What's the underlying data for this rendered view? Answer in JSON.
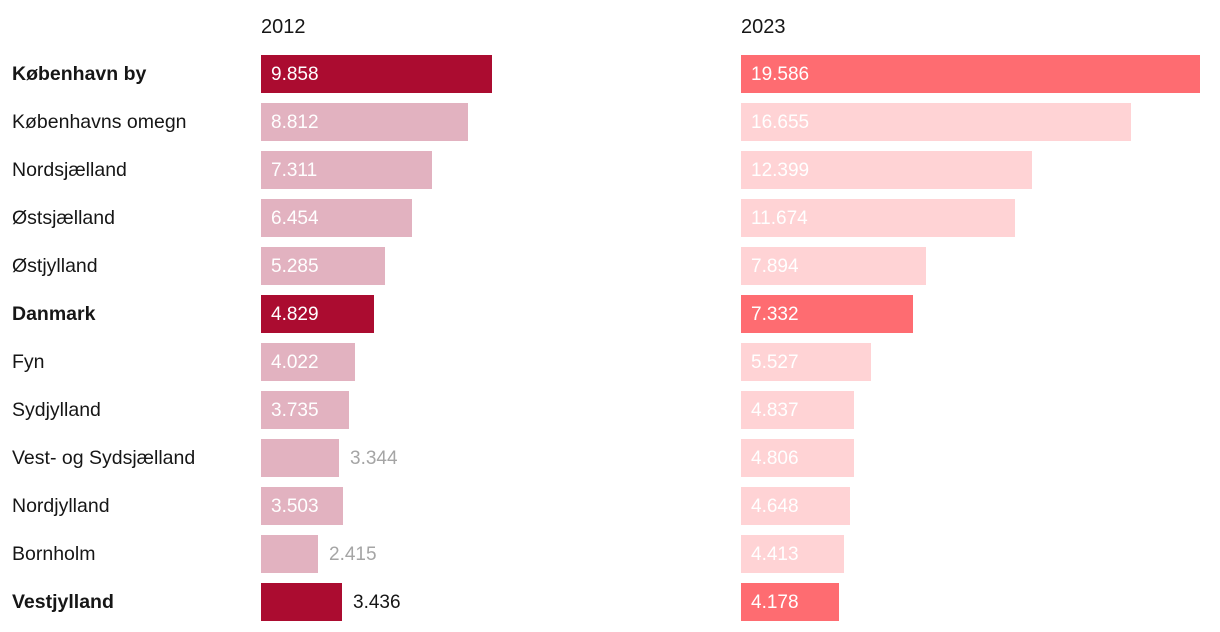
{
  "chart_data": {
    "type": "bar",
    "orientation": "horizontal",
    "column_headers": [
      "2012",
      "2023"
    ],
    "categories": [
      "København by",
      "Københavns omegn",
      "Nordsjælland",
      "Østsjælland",
      "Østjylland",
      "Danmark",
      "Fyn",
      "Sydjylland",
      "Vest- og Sydsjælland",
      "Nordjylland",
      "Bornholm",
      "Vestjylland"
    ],
    "series": [
      {
        "name": "2012",
        "values": [
          9858,
          8812,
          7311,
          6454,
          5285,
          4829,
          4022,
          3735,
          3344,
          3503,
          2415,
          3436
        ]
      },
      {
        "name": "2023",
        "values": [
          19586,
          16655,
          12399,
          11674,
          7894,
          7332,
          5527,
          4837,
          4806,
          4648,
          4413,
          4178
        ]
      }
    ],
    "highlighted_categories": [
      "København by",
      "Danmark",
      "Vestjylland"
    ],
    "xlim": [
      0,
      19586
    ],
    "grid": "off",
    "legend_position": "column-headers",
    "value_format": "thousands-dot"
  },
  "headers": {
    "col2012": "2012",
    "col2023": "2023"
  },
  "colors": {
    "bar_2012_highlight": "#ab0c30",
    "bar_2012_normal": "#e2b2c0",
    "bar_2023_highlight": "#fe6c71",
    "bar_2023_normal": "#ffd3d5",
    "value_inside": "#ffffff",
    "value_outside_muted": "#a5a5a5",
    "text": "#161616",
    "background": "#ffffff"
  },
  "rows": [
    {
      "label": "København by",
      "highlight": true,
      "cells": [
        {
          "value": 9858,
          "text": "9.858",
          "label_position": "inside"
        },
        {
          "value": 19586,
          "text": "19.586",
          "label_position": "inside"
        }
      ]
    },
    {
      "label": "Københavns omegn",
      "highlight": false,
      "cells": [
        {
          "value": 8812,
          "text": "8.812",
          "label_position": "inside"
        },
        {
          "value": 16655,
          "text": "16.655",
          "label_position": "inside"
        }
      ]
    },
    {
      "label": "Nordsjælland",
      "highlight": false,
      "cells": [
        {
          "value": 7311,
          "text": "7.311",
          "label_position": "inside"
        },
        {
          "value": 12399,
          "text": "12.399",
          "label_position": "inside"
        }
      ]
    },
    {
      "label": "Østsjælland",
      "highlight": false,
      "cells": [
        {
          "value": 6454,
          "text": "6.454",
          "label_position": "inside"
        },
        {
          "value": 11674,
          "text": "11.674",
          "label_position": "inside"
        }
      ]
    },
    {
      "label": "Østjylland",
      "highlight": false,
      "cells": [
        {
          "value": 5285,
          "text": "5.285",
          "label_position": "inside"
        },
        {
          "value": 7894,
          "text": "7.894",
          "label_position": "inside"
        }
      ]
    },
    {
      "label": "Danmark",
      "highlight": true,
      "cells": [
        {
          "value": 4829,
          "text": "4.829",
          "label_position": "inside"
        },
        {
          "value": 7332,
          "text": "7.332",
          "label_position": "inside"
        }
      ]
    },
    {
      "label": "Fyn",
      "highlight": false,
      "cells": [
        {
          "value": 4022,
          "text": "4.022",
          "label_position": "inside"
        },
        {
          "value": 5527,
          "text": "5.527",
          "label_position": "inside"
        }
      ]
    },
    {
      "label": "Sydjylland",
      "highlight": false,
      "cells": [
        {
          "value": 3735,
          "text": "3.735",
          "label_position": "inside"
        },
        {
          "value": 4837,
          "text": "4.837",
          "label_position": "inside"
        }
      ]
    },
    {
      "label": "Vest- og Sydsjælland",
      "highlight": false,
      "cells": [
        {
          "value": 3344,
          "text": "3.344",
          "label_position": "outside-muted"
        },
        {
          "value": 4806,
          "text": "4.806",
          "label_position": "inside"
        }
      ]
    },
    {
      "label": "Nordjylland",
      "highlight": false,
      "cells": [
        {
          "value": 3503,
          "text": "3.503",
          "label_position": "inside"
        },
        {
          "value": 4648,
          "text": "4.648",
          "label_position": "inside"
        }
      ]
    },
    {
      "label": "Bornholm",
      "highlight": false,
      "cells": [
        {
          "value": 2415,
          "text": "2.415",
          "label_position": "outside-muted"
        },
        {
          "value": 4413,
          "text": "4.413",
          "label_position": "inside"
        }
      ]
    },
    {
      "label": "Vestjylland",
      "highlight": true,
      "cells": [
        {
          "value": 3436,
          "text": "3.436",
          "label_position": "outside"
        },
        {
          "value": 4178,
          "text": "4.178",
          "label_position": "inside"
        }
      ]
    }
  ]
}
